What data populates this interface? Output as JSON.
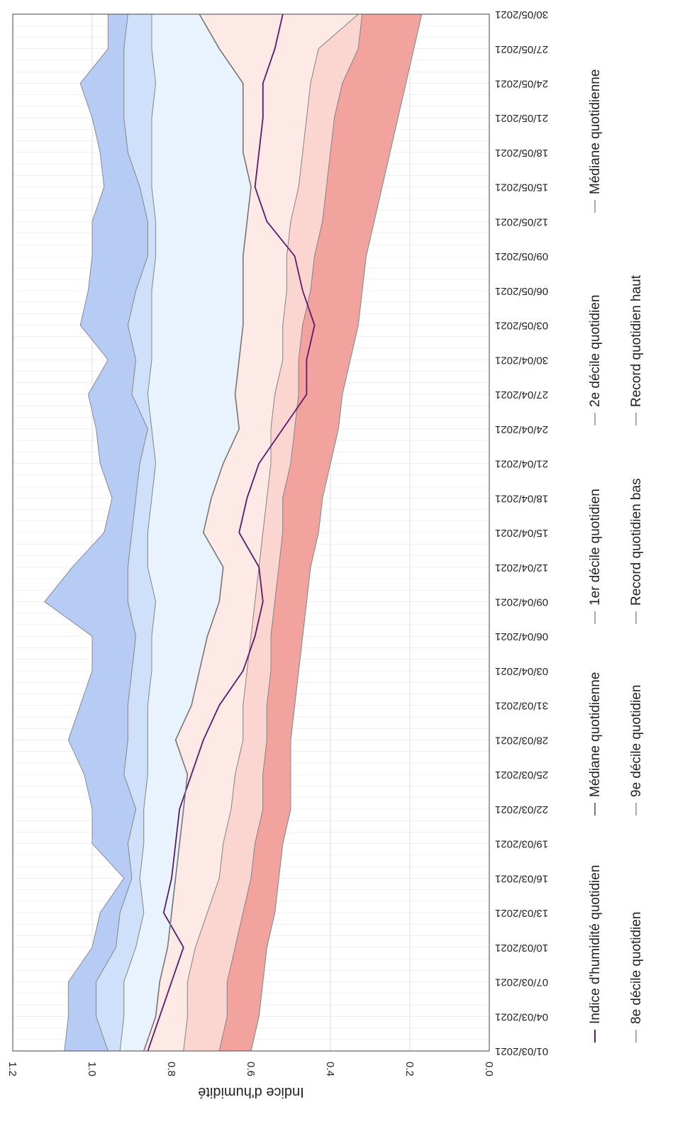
{
  "chart_data": {
    "type": "area",
    "orientation": "rotated-90-clockwise",
    "title": "",
    "xlabel": "",
    "ylabel": "Indice d'humidité",
    "ylim": [
      0,
      1.2
    ],
    "yticks": [
      "0.0",
      "0.2",
      "0.4",
      "0.6",
      "0.8",
      "1.0",
      "1.2"
    ],
    "xticks": [
      "01/03/2021",
      "04/03/2021",
      "07/03/2021",
      "10/03/2021",
      "13/03/2021",
      "16/03/2021",
      "19/03/2021",
      "22/03/2021",
      "25/03/2021",
      "28/03/2021",
      "31/03/2021",
      "03/04/2021",
      "06/04/2021",
      "09/04/2021",
      "12/04/2021",
      "15/04/2021",
      "18/04/2021",
      "21/04/2021",
      "24/04/2021",
      "27/04/2021",
      "30/04/2021",
      "03/05/2021",
      "06/05/2021",
      "09/05/2021",
      "12/05/2021",
      "15/05/2021",
      "18/05/2021",
      "21/05/2021",
      "24/05/2021",
      "27/05/2021",
      "30/05/2021"
    ],
    "xrange": [
      "01/03/2021",
      "31/05/2021"
    ],
    "grid": true,
    "legend_position": "bottom",
    "x_day_index": [
      0,
      3,
      6,
      9,
      12,
      15,
      18,
      21,
      24,
      27,
      30,
      33,
      36,
      39,
      42,
      45,
      48,
      51,
      54,
      57,
      60,
      63,
      66,
      69,
      72,
      75,
      78,
      81,
      84,
      87,
      90
    ],
    "series": [
      {
        "name": "Record quotidien haut",
        "role": "record_high",
        "color": "#b7ccf5",
        "values": [
          1.07,
          1.06,
          1.06,
          1.0,
          0.98,
          0.92,
          1.0,
          1.0,
          1.02,
          1.06,
          1.03,
          1.0,
          1.0,
          1.12,
          1.05,
          0.97,
          0.95,
          0.98,
          0.99,
          1.01,
          0.96,
          1.03,
          1.01,
          1.0,
          1.0,
          0.97,
          0.98,
          1.0,
          1.03,
          0.96,
          0.96
        ]
      },
      {
        "name": "9e décile quotidien",
        "role": "d9",
        "color": "#cfe0fb",
        "values": [
          0.96,
          0.99,
          0.99,
          0.94,
          0.93,
          0.9,
          0.91,
          0.89,
          0.92,
          0.91,
          0.91,
          0.9,
          0.89,
          0.91,
          0.91,
          0.9,
          0.89,
          0.88,
          0.86,
          0.9,
          0.89,
          0.91,
          0.89,
          0.86,
          0.86,
          0.88,
          0.91,
          0.92,
          0.92,
          0.92,
          0.91
        ]
      },
      {
        "name": "8e décile quotidien",
        "role": "d8",
        "color": "#e9f3fe",
        "values": [
          0.93,
          0.92,
          0.92,
          0.89,
          0.87,
          0.88,
          0.87,
          0.87,
          0.86,
          0.86,
          0.86,
          0.85,
          0.85,
          0.84,
          0.86,
          0.86,
          0.85,
          0.84,
          0.85,
          0.86,
          0.85,
          0.85,
          0.85,
          0.84,
          0.84,
          0.85,
          0.85,
          0.85,
          0.84,
          0.85,
          0.85
        ]
      },
      {
        "name": "Médiane quotidienne",
        "role": "median",
        "color": "#fdeae6",
        "values": [
          0.87,
          0.84,
          0.83,
          0.81,
          0.8,
          0.79,
          0.78,
          0.77,
          0.76,
          0.79,
          0.75,
          0.73,
          0.71,
          0.68,
          0.67,
          0.72,
          0.7,
          0.67,
          0.63,
          0.64,
          0.63,
          0.62,
          0.62,
          0.62,
          0.61,
          0.6,
          0.62,
          0.62,
          0.62,
          0.68,
          0.73
        ]
      },
      {
        "name": "2e décile quotidien",
        "role": "d2",
        "color": "#fbd5d0",
        "values": [
          0.77,
          0.76,
          0.76,
          0.74,
          0.71,
          0.68,
          0.67,
          0.65,
          0.64,
          0.62,
          0.62,
          0.61,
          0.6,
          0.59,
          0.58,
          0.57,
          0.56,
          0.55,
          0.55,
          0.54,
          0.52,
          0.52,
          0.51,
          0.51,
          0.5,
          0.48,
          0.47,
          0.46,
          0.45,
          0.43,
          0.33
        ]
      },
      {
        "name": "1er décile quotidien",
        "role": "d1",
        "color": "#fabfb9",
        "values": [
          0.68,
          0.66,
          0.66,
          0.64,
          0.62,
          0.6,
          0.59,
          0.57,
          0.57,
          0.56,
          0.56,
          0.55,
          0.55,
          0.54,
          0.53,
          0.52,
          0.52,
          0.5,
          0.49,
          0.48,
          0.48,
          0.47,
          0.45,
          0.44,
          0.42,
          0.41,
          0.4,
          0.39,
          0.37,
          0.33,
          0.32
        ]
      },
      {
        "name": "Record quotidien bas",
        "role": "record_low",
        "color": "#f3a39d",
        "values": [
          0.6,
          0.58,
          0.57,
          0.56,
          0.54,
          0.53,
          0.52,
          0.5,
          0.5,
          0.5,
          0.49,
          0.48,
          0.47,
          0.46,
          0.45,
          0.43,
          0.42,
          0.4,
          0.38,
          0.37,
          0.35,
          0.33,
          0.32,
          0.31,
          0.29,
          0.27,
          0.25,
          0.23,
          0.21,
          0.19,
          0.17
        ]
      },
      {
        "name": "Indice d'humidité quotidien",
        "role": "observed",
        "color": "#5b1a6e",
        "values": [
          0.86,
          0.83,
          0.8,
          0.77,
          0.82,
          0.8,
          0.79,
          0.78,
          0.75,
          0.72,
          0.68,
          0.62,
          0.59,
          0.57,
          0.58,
          0.63,
          0.61,
          0.58,
          0.52,
          0.46,
          0.46,
          0.44,
          0.47,
          0.49,
          0.56,
          0.59,
          0.58,
          0.57,
          0.57,
          0.54,
          0.52
        ]
      },
      {
        "name": "Médiane quotidienne",
        "role": "median_line",
        "color": "#777777",
        "values": [
          0.87,
          0.84,
          0.83,
          0.81,
          0.8,
          0.79,
          0.78,
          0.77,
          0.76,
          0.79,
          0.75,
          0.73,
          0.71,
          0.68,
          0.67,
          0.72,
          0.7,
          0.67,
          0.63,
          0.64,
          0.63,
          0.62,
          0.62,
          0.62,
          0.61,
          0.6,
          0.62,
          0.62,
          0.62,
          0.68,
          0.73
        ]
      }
    ],
    "legend": [
      {
        "label": "Indice d'humidité quotidien",
        "color": "#5b1a6e"
      },
      {
        "label": "Médiane quotidienne",
        "color": "#777777"
      },
      {
        "label": "1er décile quotidien",
        "color": "#aaaaaa"
      },
      {
        "label": "2e décile quotidien",
        "color": "#aaaaaa"
      },
      {
        "label": "Médiane quotidienne",
        "color": "#aaaaaa"
      },
      {
        "label": "8e décile quotidien",
        "color": "#aaaaaa"
      },
      {
        "label": "9e décile quotidien",
        "color": "#aaaaaa"
      },
      {
        "label": "Record quotidien bas",
        "color": "#aaaaaa"
      },
      {
        "label": "Record quotidien haut",
        "color": "#aaaaaa"
      }
    ]
  }
}
